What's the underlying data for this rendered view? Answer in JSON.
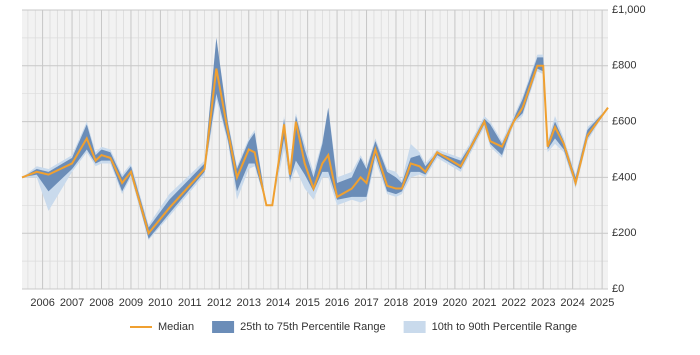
{
  "chart_data": {
    "type": "band-line",
    "x": [
      2005.3,
      2005.8,
      2006.2,
      2007.0,
      2007.5,
      2007.8,
      2008.0,
      2008.3,
      2008.7,
      2009.0,
      2009.6,
      2010.3,
      2011.5,
      2011.9,
      2012.3,
      2012.6,
      2013.0,
      2013.2,
      2013.6,
      2013.8,
      2014.2,
      2014.4,
      2014.6,
      2014.9,
      2015.2,
      2015.5,
      2015.7,
      2016.0,
      2016.5,
      2016.8,
      2017.0,
      2017.3,
      2017.7,
      2018.0,
      2018.2,
      2018.5,
      2018.8,
      2019.0,
      2019.4,
      2020.2,
      2020.5,
      2021.0,
      2021.2,
      2021.6,
      2022.0,
      2022.3,
      2022.8,
      2023.0,
      2023.15,
      2023.4,
      2023.7,
      2024.1,
      2024.5,
      2025.2
    ],
    "series": [
      {
        "name": "Median",
        "color": "#f0a030",
        "values": [
          400,
          420,
          410,
          450,
          540,
          460,
          480,
          470,
          380,
          420,
          200,
          290,
          430,
          790,
          560,
          400,
          500,
          490,
          300,
          300,
          590,
          410,
          600,
          450,
          360,
          450,
          480,
          330,
          360,
          400,
          380,
          500,
          370,
          360,
          360,
          450,
          440,
          420,
          490,
          440,
          500,
          600,
          530,
          510,
          600,
          650,
          800,
          800,
          510,
          580,
          520,
          380,
          550,
          650
        ]
      },
      {
        "name": "25th to 75th Percentile Range",
        "color": "#6b8db8",
        "lower": [
          400,
          410,
          350,
          430,
          500,
          450,
          460,
          460,
          350,
          410,
          180,
          270,
          420,
          700,
          530,
          350,
          450,
          450,
          300,
          300,
          540,
          390,
          460,
          410,
          350,
          420,
          420,
          320,
          330,
          330,
          330,
          480,
          350,
          340,
          350,
          420,
          420,
          410,
          480,
          430,
          490,
          590,
          520,
          480,
          600,
          630,
          790,
          780,
          500,
          540,
          500,
          370,
          540,
          650
        ],
        "upper": [
          400,
          430,
          420,
          470,
          590,
          480,
          500,
          490,
          400,
          440,
          220,
          320,
          450,
          900,
          590,
          430,
          530,
          560,
          300,
          300,
          610,
          420,
          620,
          500,
          400,
          520,
          650,
          380,
          400,
          470,
          430,
          530,
          420,
          400,
          380,
          470,
          480,
          440,
          490,
          460,
          510,
          610,
          590,
          520,
          610,
          680,
          830,
          830,
          520,
          600,
          530,
          400,
          570,
          650
        ]
      },
      {
        "name": "10th to 90th Percentile Range",
        "color": "#c9daec",
        "lower": [
          400,
          400,
          280,
          420,
          490,
          440,
          450,
          450,
          340,
          400,
          175,
          260,
          410,
          680,
          520,
          320,
          430,
          440,
          300,
          300,
          500,
          380,
          430,
          360,
          320,
          400,
          400,
          300,
          320,
          310,
          320,
          460,
          340,
          330,
          340,
          400,
          410,
          400,
          470,
          420,
          480,
          580,
          510,
          470,
          590,
          620,
          780,
          770,
          490,
          520,
          490,
          360,
          530,
          650
        ],
        "upper": [
          400,
          440,
          430,
          480,
          600,
          490,
          510,
          500,
          410,
          450,
          230,
          340,
          460,
          900,
          600,
          440,
          540,
          570,
          300,
          300,
          620,
          430,
          630,
          520,
          420,
          530,
          650,
          400,
          420,
          480,
          440,
          540,
          430,
          420,
          390,
          520,
          490,
          450,
          500,
          470,
          520,
          620,
          600,
          530,
          620,
          690,
          840,
          840,
          530,
          620,
          540,
          410,
          580,
          650
        ]
      }
    ],
    "xlim": [
      2005.3,
      2025.2
    ],
    "xticks": [
      2006,
      2007,
      2008,
      2009,
      2010,
      2011,
      2012,
      2013,
      2014,
      2015,
      2016,
      2017,
      2018,
      2019,
      2020,
      2021,
      2022,
      2023,
      2024,
      2025
    ],
    "ylim": [
      0,
      1000
    ],
    "yticks": [
      {
        "value": 0,
        "label": "£0"
      },
      {
        "value": 200,
        "label": "£200"
      },
      {
        "value": 400,
        "label": "£400"
      },
      {
        "value": 600,
        "label": "£600"
      },
      {
        "value": 800,
        "label": "£800"
      },
      {
        "value": 1000,
        "label": "£1,000"
      }
    ],
    "grid": true
  }
}
